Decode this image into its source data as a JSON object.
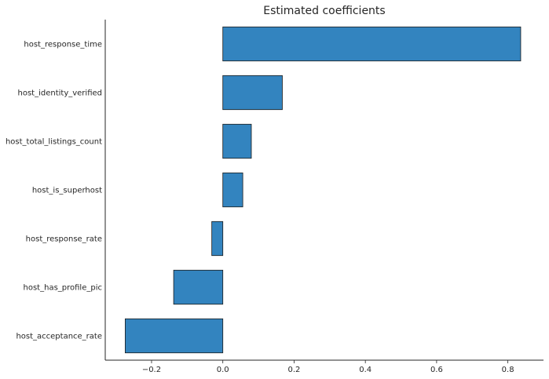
{
  "chart_data": {
    "type": "bar",
    "orientation": "horizontal",
    "title": "Estimated coefficients",
    "xlabel": "",
    "ylabel": "",
    "categories": [
      "host_response_time",
      "host_identity_verified",
      "host_total_listings_count",
      "host_is_superhost",
      "host_response_rate",
      "host_has_profile_pic",
      "host_acceptance_rate"
    ],
    "values": [
      0.836,
      0.167,
      0.08,
      0.056,
      -0.031,
      -0.138,
      -0.274
    ],
    "xlim": [
      -0.33,
      0.9
    ],
    "xticks": [
      -0.2,
      0.0,
      0.2,
      0.4,
      0.6,
      0.8
    ],
    "xtick_labels": [
      "−0.2",
      "0.0",
      "0.2",
      "0.4",
      "0.6",
      "0.8"
    ],
    "grid": false,
    "colors": {
      "bar": "#3384bf",
      "bar_edge": "#1a1a1a",
      "axis": "#262626"
    }
  }
}
